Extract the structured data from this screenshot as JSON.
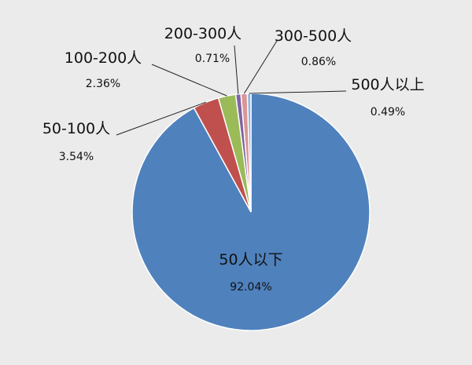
{
  "chart_data": {
    "type": "pie",
    "title": "",
    "start": "top, clockwise",
    "slices": [
      {
        "label": "50人以下",
        "value": 92.04,
        "pct_label": "92.04%",
        "color": "#4f81bd"
      },
      {
        "label": "50-100人",
        "value": 3.54,
        "pct_label": "3.54%",
        "color": "#c0504d"
      },
      {
        "label": "100-200人",
        "value": 2.36,
        "pct_label": "2.36%",
        "color": "#9bbb59"
      },
      {
        "label": "200-300人",
        "value": 0.71,
        "pct_label": "0.71%",
        "color": "#8064a2"
      },
      {
        "label": "300-500人",
        "value": 0.86,
        "pct_label": "0.86%",
        "color": "#d99694"
      },
      {
        "label": "500人以上",
        "value": 0.49,
        "pct_label": "0.49%",
        "color": "#8eb4e3"
      }
    ],
    "legend": "none, labels with leader lines"
  }
}
